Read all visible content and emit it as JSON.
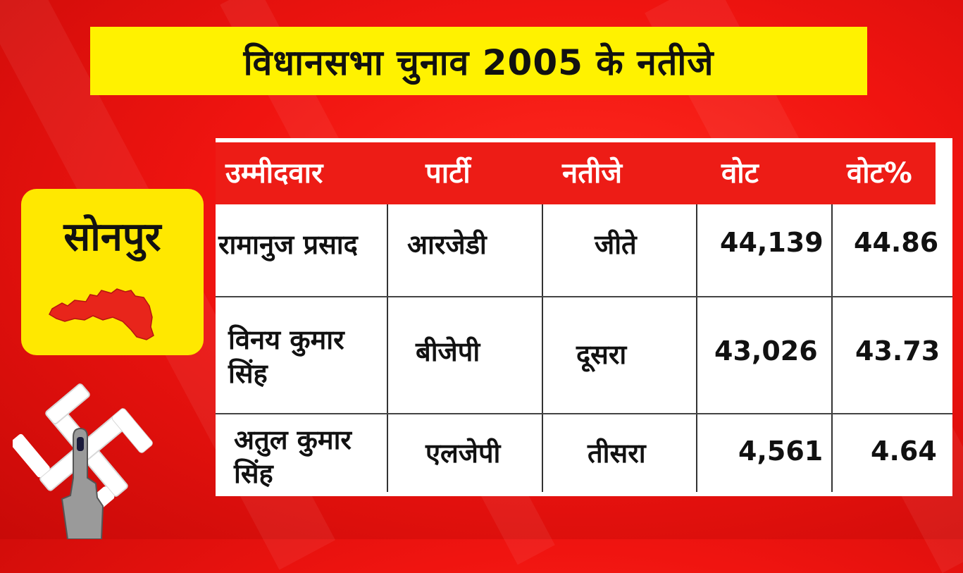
{
  "title": "विधानसभा चुनाव 2005 के नतीजे",
  "constituency": "सोनपुर",
  "table": {
    "headers": [
      "उम्मीदवार",
      "पार्टी",
      "नतीजे",
      "वोट",
      "वोट%"
    ],
    "rows": [
      {
        "candidate": "रामानुज प्रसाद",
        "party": "आरजेडी",
        "result": "जीते",
        "votes": "44,139",
        "vote_pct": "44.86"
      },
      {
        "candidate": "विनय कुमार सिंह",
        "party": "बीजेपी",
        "result": "दूसरा",
        "votes": "43,026",
        "vote_pct": "43.73"
      },
      {
        "candidate": "अतुल कुमार सिंह",
        "party": "एलजेपी",
        "result": "तीसरा",
        "votes": "4,561",
        "vote_pct": "4.64"
      }
    ]
  },
  "colors": {
    "background": "#f01410",
    "title_bar": "#fff200",
    "place_card": "#ffe800",
    "header_row": "#ed1c16",
    "map": "#e8251b"
  },
  "icons": {
    "map": "constituency-map-icon",
    "symbol": "voting-swastika-symbol-with-inked-finger"
  }
}
